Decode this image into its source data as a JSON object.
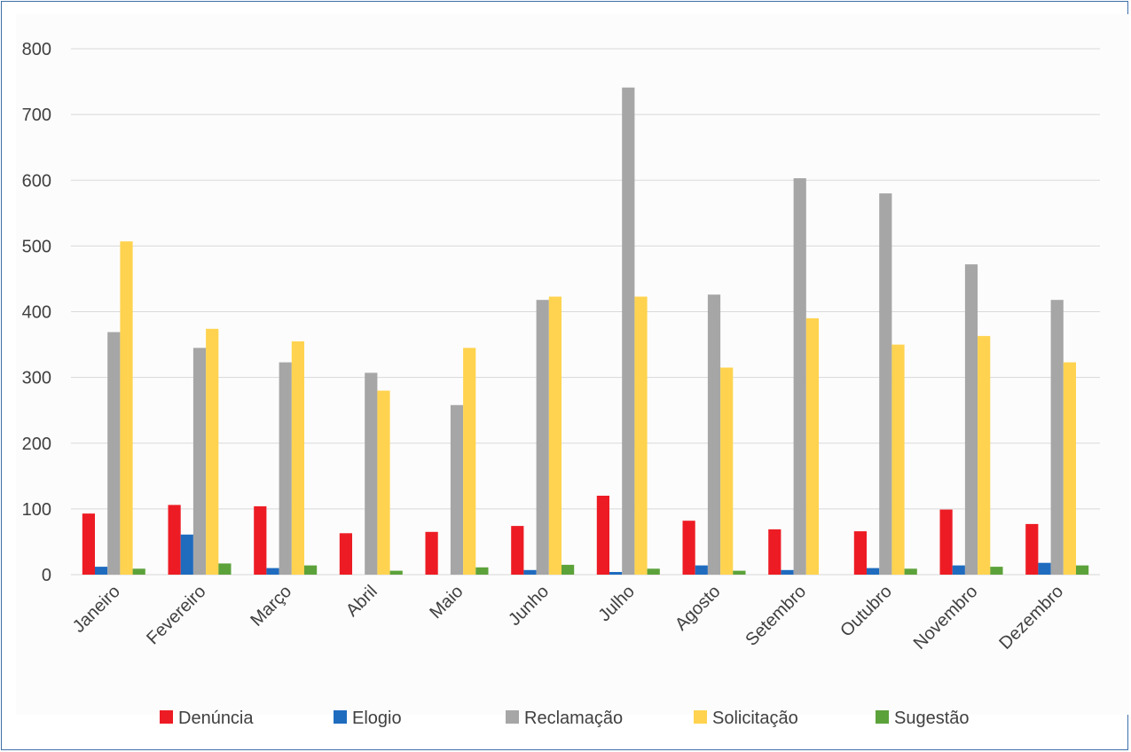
{
  "chart_data": {
    "type": "bar",
    "title": "",
    "xlabel": "",
    "ylabel": "",
    "ylim": [
      0,
      800
    ],
    "yticks": [
      "0",
      "100",
      "200",
      "300",
      "400",
      "500",
      "600",
      "700",
      "800"
    ],
    "grid": true,
    "legend_position": "bottom",
    "categories": [
      "Janeiro",
      "Fevereiro",
      "Março",
      "Abril",
      "Maio",
      "Junho",
      "Julho",
      "Agosto",
      "Setembro",
      "Outubro",
      "Novembro",
      "Dezembro"
    ],
    "series": [
      {
        "name": "Denúncia",
        "color": "#ed1c24",
        "values": [
          93,
          106,
          104,
          63,
          65,
          74,
          120,
          82,
          69,
          66,
          99,
          77
        ]
      },
      {
        "name": "Elogio",
        "color": "#1f6cbf",
        "values": [
          12,
          61,
          10,
          0,
          0,
          7,
          4,
          14,
          7,
          10,
          14,
          18
        ]
      },
      {
        "name": "Reclamação",
        "color": "#a6a6a6",
        "values": [
          369,
          345,
          323,
          307,
          258,
          418,
          741,
          426,
          603,
          580,
          472,
          418
        ]
      },
      {
        "name": "Solicitação",
        "color": "#ffd34f",
        "values": [
          507,
          374,
          355,
          280,
          345,
          423,
          423,
          315,
          390,
          350,
          363,
          323
        ]
      },
      {
        "name": "Sugestão",
        "color": "#5ca23b",
        "values": [
          9,
          17,
          14,
          6,
          11,
          15,
          9,
          6,
          0,
          9,
          12,
          14
        ]
      }
    ]
  }
}
